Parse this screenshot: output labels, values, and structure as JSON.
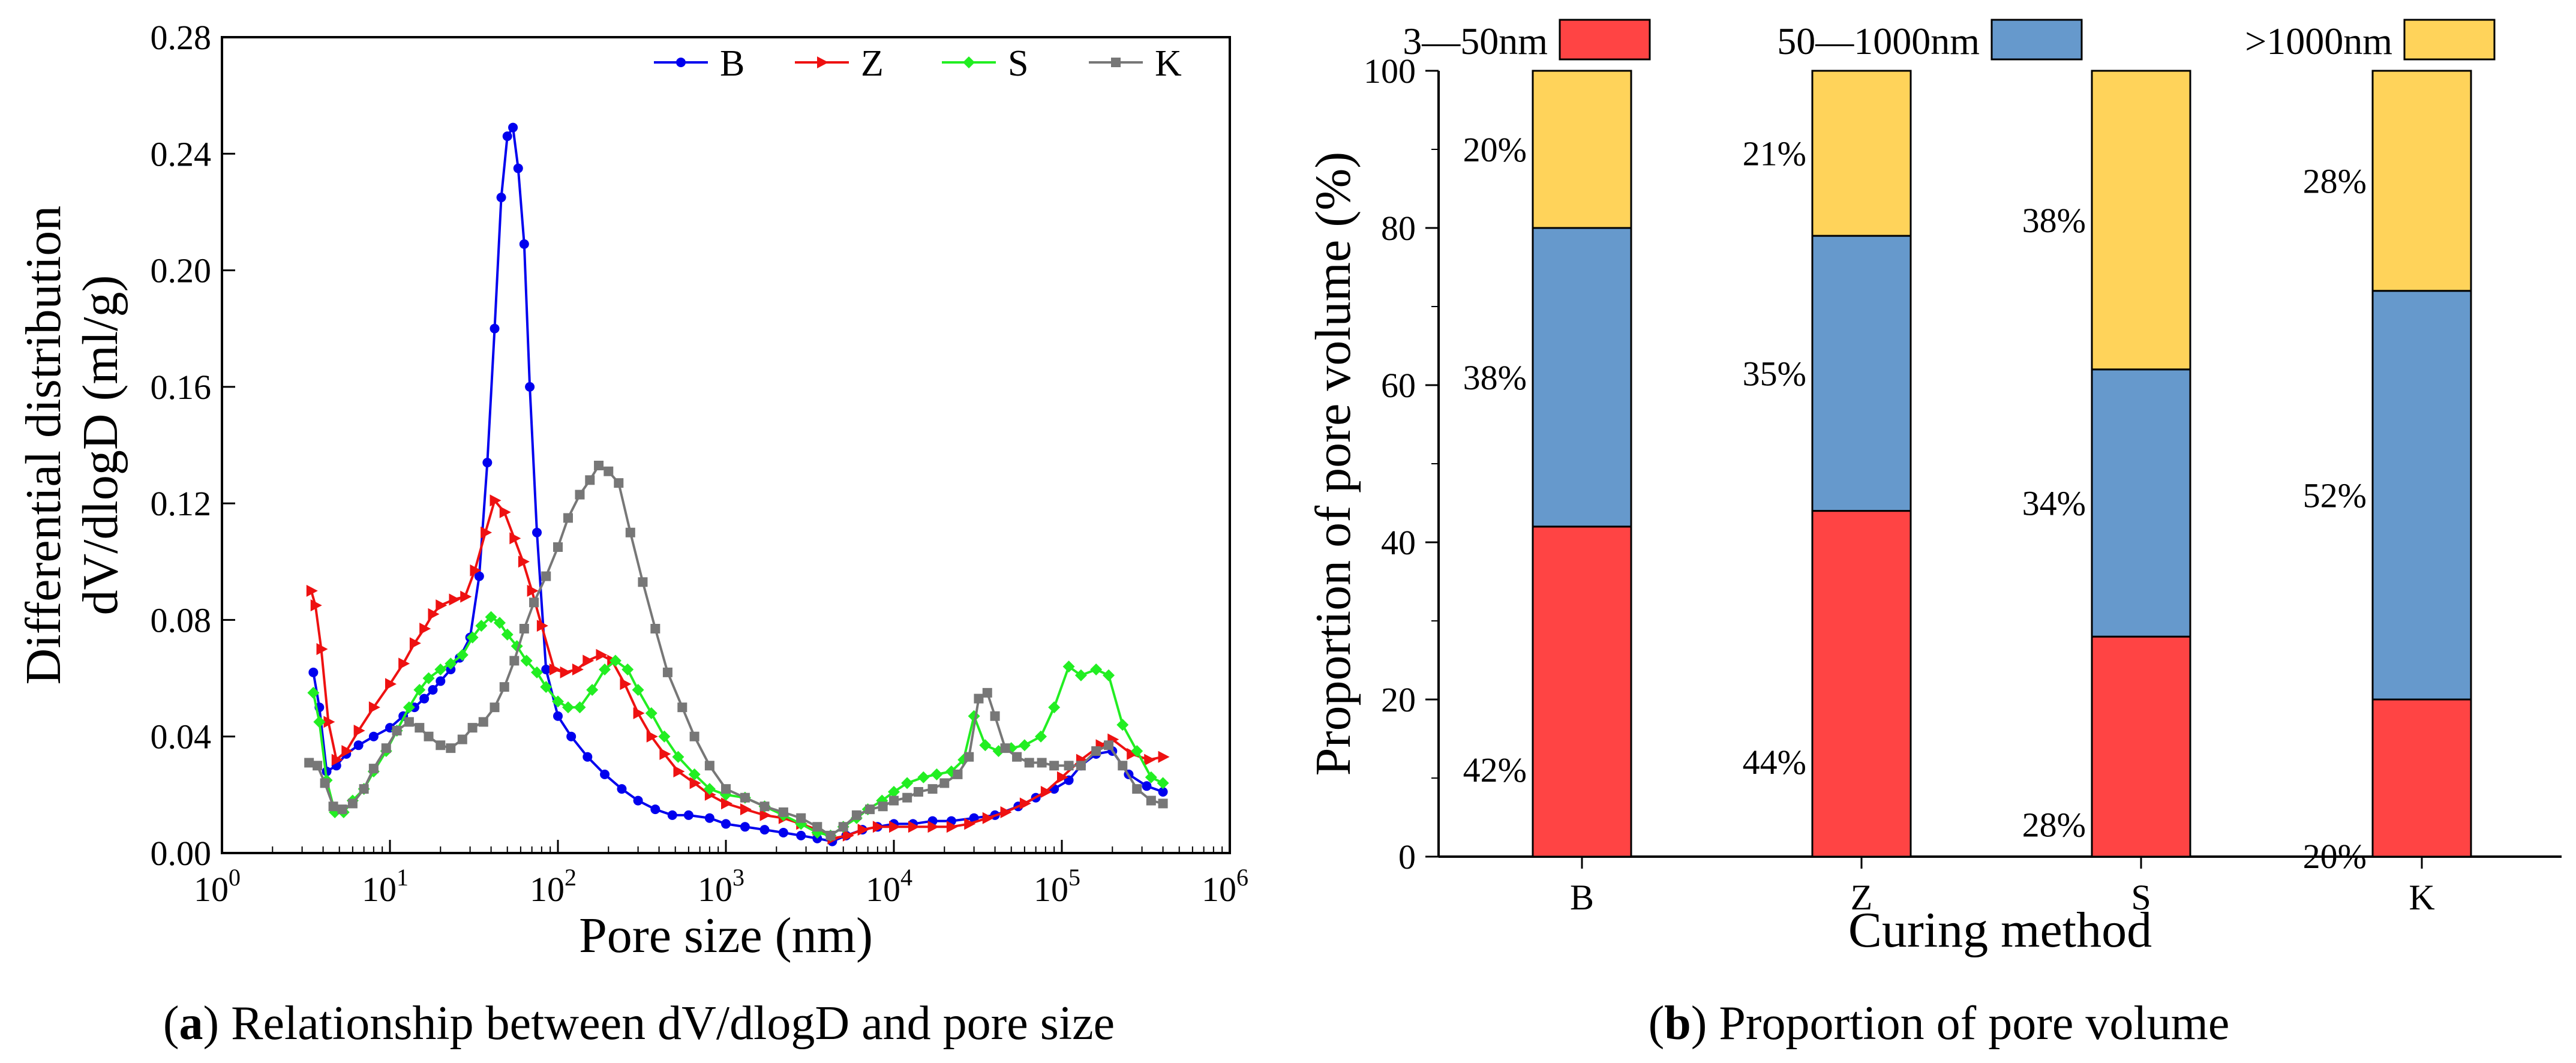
{
  "chart_data": [
    {
      "type": "line",
      "panel": "a",
      "title": "",
      "caption_letter": "a",
      "caption_text": " Relationship between dV/dlogD and pore size",
      "xlabel": "Pore size (nm)",
      "ylabel_line1": "Differential distribution",
      "ylabel_line2": "dV/dlogD (ml/g)",
      "xscale": "log",
      "xlim": [
        1,
        1000000
      ],
      "ylim": [
        0,
        0.28
      ],
      "yticks": [
        "0.00",
        "0.04",
        "0.08",
        "0.12",
        "0.16",
        "0.20",
        "0.24",
        "0.28"
      ],
      "xticks": [
        {
          "base": "10",
          "exp": "0"
        },
        {
          "base": "10",
          "exp": "1"
        },
        {
          "base": "10",
          "exp": "2"
        },
        {
          "base": "10",
          "exp": "3"
        },
        {
          "base": "10",
          "exp": "4"
        },
        {
          "base": "10",
          "exp": "5"
        },
        {
          "base": "10",
          "exp": "6"
        }
      ],
      "legend_position": "top-right",
      "series": [
        {
          "name": "B",
          "color": "#0000ee",
          "marker": "circle",
          "x": [
            3.5,
            3.8,
            4.2,
            4.8,
            5.5,
            6.5,
            8,
            10,
            12,
            14,
            16,
            18,
            20,
            23,
            26,
            30,
            34,
            38,
            42,
            46,
            50,
            54,
            58,
            63,
            68,
            75,
            85,
            100,
            120,
            150,
            190,
            240,
            300,
            380,
            480,
            600,
            800,
            1000,
            1300,
            1700,
            2200,
            2800,
            3500,
            4300,
            5200,
            6500,
            8000,
            10000,
            13000,
            17000,
            22000,
            30000,
            40000,
            55000,
            70000,
            90000,
            110000,
            130000,
            160000,
            200000,
            250000,
            320000,
            400000
          ],
          "y": [
            0.062,
            0.05,
            0.028,
            0.03,
            0.034,
            0.037,
            0.04,
            0.043,
            0.047,
            0.05,
            0.053,
            0.056,
            0.059,
            0.063,
            0.067,
            0.074,
            0.095,
            0.134,
            0.18,
            0.225,
            0.246,
            0.249,
            0.235,
            0.209,
            0.16,
            0.11,
            0.063,
            0.047,
            0.04,
            0.033,
            0.027,
            0.022,
            0.018,
            0.015,
            0.013,
            0.013,
            0.012,
            0.01,
            0.009,
            0.008,
            0.007,
            0.006,
            0.005,
            0.004,
            0.006,
            0.008,
            0.009,
            0.01,
            0.01,
            0.011,
            0.011,
            0.012,
            0.013,
            0.016,
            0.019,
            0.022,
            0.025,
            0.03,
            0.034,
            0.035,
            0.027,
            0.023,
            0.021
          ]
        },
        {
          "name": "Z",
          "color": "#ee1111",
          "marker": "triangle-right",
          "x": [
            3.4,
            3.6,
            3.9,
            4.3,
            4.8,
            5.5,
            6.5,
            8,
            10,
            12,
            14,
            16,
            18,
            20,
            24,
            28,
            32,
            37,
            42,
            48,
            55,
            62,
            70,
            80,
            95,
            110,
            130,
            150,
            180,
            210,
            250,
            300,
            360,
            430,
            520,
            650,
            800,
            1000,
            1300,
            1700,
            2200,
            2800,
            3500,
            4300,
            5300,
            6500,
            8000,
            10000,
            13000,
            17000,
            22000,
            28000,
            36000,
            46000,
            60000,
            80000,
            100000,
            130000,
            170000,
            200000,
            260000,
            330000,
            400000
          ],
          "y": [
            0.09,
            0.085,
            0.07,
            0.045,
            0.032,
            0.035,
            0.042,
            0.05,
            0.058,
            0.065,
            0.072,
            0.077,
            0.082,
            0.085,
            0.087,
            0.088,
            0.097,
            0.11,
            0.121,
            0.117,
            0.108,
            0.1,
            0.09,
            0.078,
            0.063,
            0.062,
            0.063,
            0.066,
            0.068,
            0.066,
            0.058,
            0.048,
            0.04,
            0.034,
            0.028,
            0.024,
            0.02,
            0.017,
            0.015,
            0.013,
            0.012,
            0.01,
            0.008,
            0.005,
            0.006,
            0.008,
            0.009,
            0.009,
            0.009,
            0.009,
            0.009,
            0.01,
            0.012,
            0.014,
            0.017,
            0.021,
            0.026,
            0.032,
            0.037,
            0.039,
            0.034,
            0.032,
            0.033
          ]
        },
        {
          "name": "S",
          "color": "#22ee22",
          "marker": "diamond",
          "x": [
            3.5,
            3.8,
            4.2,
            4.7,
            5.3,
            6,
            7,
            8,
            9.5,
            11,
            13,
            15,
            17,
            20,
            23,
            27,
            31,
            35,
            40,
            45,
            50,
            57,
            65,
            75,
            85,
            100,
            115,
            135,
            160,
            190,
            220,
            260,
            300,
            360,
            430,
            520,
            650,
            800,
            1000,
            1300,
            1700,
            2200,
            2800,
            3500,
            4200,
            5000,
            6000,
            7000,
            8500,
            10000,
            12000,
            15000,
            18000,
            22000,
            26000,
            30000,
            35000,
            42000,
            50000,
            60000,
            75000,
            90000,
            110000,
            130000,
            160000,
            190000,
            230000,
            280000,
            340000,
            400000
          ],
          "y": [
            0.055,
            0.045,
            0.025,
            0.014,
            0.014,
            0.018,
            0.022,
            0.028,
            0.035,
            0.042,
            0.05,
            0.056,
            0.06,
            0.063,
            0.065,
            0.068,
            0.074,
            0.078,
            0.081,
            0.079,
            0.075,
            0.071,
            0.066,
            0.062,
            0.057,
            0.052,
            0.05,
            0.05,
            0.056,
            0.063,
            0.066,
            0.063,
            0.056,
            0.048,
            0.04,
            0.033,
            0.027,
            0.022,
            0.02,
            0.019,
            0.016,
            0.013,
            0.01,
            0.007,
            0.006,
            0.009,
            0.012,
            0.015,
            0.018,
            0.021,
            0.024,
            0.026,
            0.027,
            0.028,
            0.032,
            0.047,
            0.037,
            0.035,
            0.036,
            0.037,
            0.04,
            0.05,
            0.064,
            0.061,
            0.063,
            0.061,
            0.044,
            0.035,
            0.026,
            0.024
          ]
        },
        {
          "name": "K",
          "color": "#777777",
          "marker": "square",
          "x": [
            3.3,
            3.7,
            4.1,
            4.6,
            5.2,
            6,
            7,
            8,
            9.5,
            11,
            13,
            15,
            17,
            20,
            23,
            27,
            31,
            36,
            42,
            48,
            55,
            63,
            72,
            85,
            100,
            115,
            135,
            155,
            175,
            200,
            230,
            270,
            320,
            380,
            450,
            550,
            650,
            800,
            1000,
            1300,
            1700,
            2200,
            2800,
            3500,
            4200,
            5000,
            6000,
            7200,
            8600,
            10000,
            12000,
            14000,
            17000,
            20000,
            24000,
            28000,
            32000,
            36000,
            40000,
            46000,
            54000,
            64000,
            76000,
            90000,
            110000,
            130000,
            160000,
            190000,
            230000,
            280000,
            340000,
            400000
          ],
          "y": [
            0.031,
            0.03,
            0.024,
            0.016,
            0.015,
            0.017,
            0.022,
            0.029,
            0.036,
            0.042,
            0.045,
            0.043,
            0.04,
            0.037,
            0.036,
            0.039,
            0.043,
            0.045,
            0.05,
            0.057,
            0.066,
            0.077,
            0.086,
            0.095,
            0.105,
            0.115,
            0.123,
            0.128,
            0.133,
            0.131,
            0.127,
            0.11,
            0.093,
            0.077,
            0.062,
            0.05,
            0.04,
            0.03,
            0.022,
            0.019,
            0.016,
            0.014,
            0.012,
            0.009,
            0.006,
            0.009,
            0.013,
            0.015,
            0.016,
            0.018,
            0.019,
            0.021,
            0.022,
            0.024,
            0.027,
            0.033,
            0.053,
            0.055,
            0.047,
            0.036,
            0.033,
            0.031,
            0.031,
            0.03,
            0.03,
            0.03,
            0.035,
            0.037,
            0.03,
            0.022,
            0.018,
            0.017
          ]
        }
      ]
    },
    {
      "type": "bar",
      "stacked": true,
      "panel": "b",
      "caption_letter": "b",
      "caption_text": " Proportion of pore volume",
      "xlabel": "Curing method",
      "ylabel": "Proportion of pore volume (%)",
      "ylim": [
        0,
        100
      ],
      "yticks": [
        "0",
        "20",
        "40",
        "60",
        "80",
        "100"
      ],
      "categories": [
        "B",
        "Z",
        "S",
        "K"
      ],
      "legend_position": "top",
      "series": [
        {
          "name": "3—50nm",
          "color": "#ff4444",
          "values": [
            42,
            44,
            28,
            20
          ],
          "labels": [
            "42%",
            "44%",
            "28%",
            "20%"
          ]
        },
        {
          "name": "50—1000nm",
          "color": "#6699cc",
          "values": [
            38,
            35,
            34,
            52
          ],
          "labels": [
            "38%",
            "35%",
            "34%",
            "52%"
          ]
        },
        {
          "name": ">1000nm",
          "color": "#ffd35a",
          "values": [
            20,
            21,
            38,
            28
          ],
          "labels": [
            "20%",
            "21%",
            "38%",
            "28%"
          ]
        }
      ]
    }
  ]
}
